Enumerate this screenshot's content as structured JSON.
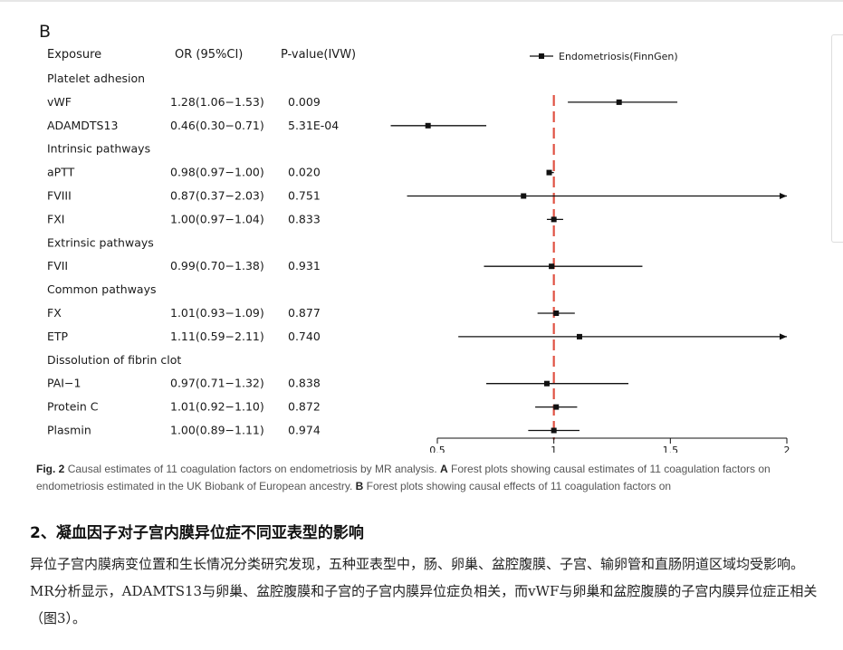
{
  "panel_label": "B",
  "columns": {
    "exposure": "Exposure",
    "or": "OR (95%CI)",
    "pvalue": "P-value(IVW)"
  },
  "legend_label": "Endometriosis(FinnGen)",
  "chart_data": {
    "type": "forest",
    "xlim": [
      0.5,
      2
    ],
    "ticks": [
      "0.5",
      "1",
      "1.5",
      "2"
    ],
    "reference_line": 1,
    "legend": "Endometriosis(FinnGen)",
    "rows": [
      {
        "kind": "group",
        "label": "Platelet adhesion"
      },
      {
        "kind": "item",
        "label": "vWF",
        "or_text": "1.28(1.06−1.53)",
        "p_text": "0.009",
        "or": 1.28,
        "lo": 1.06,
        "hi": 1.53
      },
      {
        "kind": "item",
        "label": "ADAMDTS13",
        "or_text": "0.46(0.30−0.71)",
        "p_text": "5.31E-04",
        "or": 0.46,
        "lo": 0.3,
        "hi": 0.71
      },
      {
        "kind": "group",
        "label": "Intrinsic pathways"
      },
      {
        "kind": "item",
        "label": "aPTT",
        "or_text": "0.98(0.97−1.00)",
        "p_text": "0.020",
        "or": 0.98,
        "lo": 0.97,
        "hi": 1.0
      },
      {
        "kind": "item",
        "label": "FVIII",
        "or_text": "0.87(0.37−2.03)",
        "p_text": "0.751",
        "or": 0.87,
        "lo": 0.37,
        "hi": 2.03
      },
      {
        "kind": "item",
        "label": "FXI",
        "or_text": "1.00(0.97−1.04)",
        "p_text": "0.833",
        "or": 1.0,
        "lo": 0.97,
        "hi": 1.04
      },
      {
        "kind": "group",
        "label": "Extrinsic pathways"
      },
      {
        "kind": "item",
        "label": "FVII",
        "or_text": "0.99(0.70−1.38)",
        "p_text": "0.931",
        "or": 0.99,
        "lo": 0.7,
        "hi": 1.38
      },
      {
        "kind": "group",
        "label": "Common pathways"
      },
      {
        "kind": "item",
        "label": "FX",
        "or_text": "1.01(0.93−1.09)",
        "p_text": "0.877",
        "or": 1.01,
        "lo": 0.93,
        "hi": 1.09
      },
      {
        "kind": "item",
        "label": "ETP",
        "or_text": "1.11(0.59−2.11)",
        "p_text": "0.740",
        "or": 1.11,
        "lo": 0.59,
        "hi": 2.11
      },
      {
        "kind": "group",
        "label": "Dissolution of fibrin clot"
      },
      {
        "kind": "item",
        "label": "PAI−1",
        "or_text": "0.97(0.71−1.32)",
        "p_text": "0.838",
        "or": 0.97,
        "lo": 0.71,
        "hi": 1.32
      },
      {
        "kind": "item",
        "label": "Protein C",
        "or_text": "1.01(0.92−1.10)",
        "p_text": "0.872",
        "or": 1.01,
        "lo": 0.92,
        "hi": 1.1
      },
      {
        "kind": "item",
        "label": "Plasmin",
        "or_text": "1.00(0.89−1.11)",
        "p_text": "0.974",
        "or": 1.0,
        "lo": 0.89,
        "hi": 1.11
      }
    ]
  },
  "caption": {
    "fig_label": "Fig. 2",
    "part1": "Causal estimates of 11 coagulation factors on endometriosis by MR analysis.",
    "a_label": "A",
    "part2": "Forest plots showing causal estimates of 11 coagulation factors on endometriosis estimated in the UK Biobank of European ancestry.",
    "b_label": "B",
    "part3": "Forest plots showing causal effects of 11 coagulation factors on"
  },
  "article": {
    "heading": "2、凝血因子对子宫内膜异位症不同亚表型的影响",
    "paragraph": "异位子宫内膜病变位置和生长情况分类研究发现，五种亚表型中，肠、卵巢、盆腔腹膜、子宫、输卵管和直肠阴道区域均受影响。MR分析显示，ADAMTS13与卵巢、盆腔腹膜和子宫的子宫内膜异位症负相关，而vWF与卵巢和盆腔腹膜的子宫内膜异位症正相关（图3）。"
  }
}
